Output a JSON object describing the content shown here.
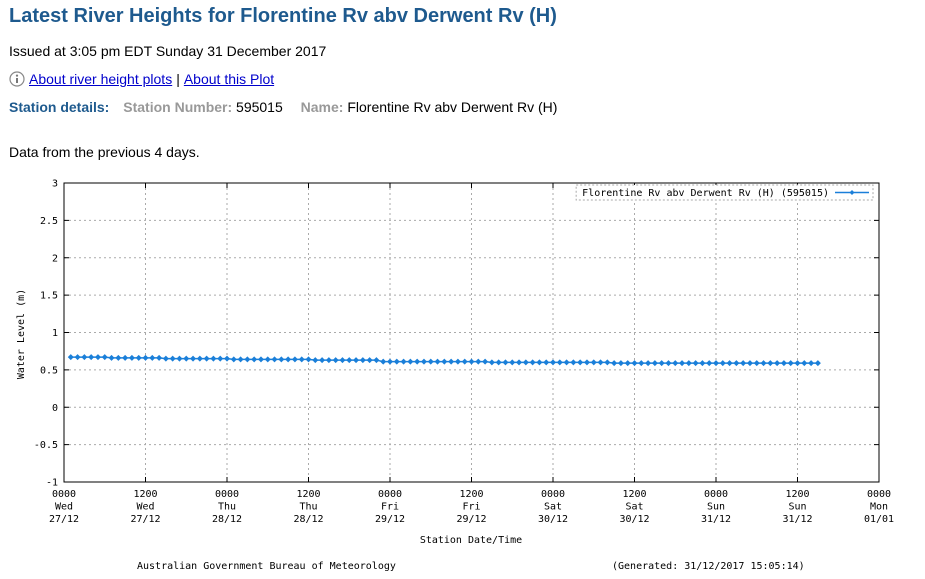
{
  "header": {
    "title": "Latest River Heights for Florentine Rv abv Derwent Rv (H)",
    "issued": "Issued at 3:05 pm EDT Sunday 31 December 2017",
    "links": [
      "About river height plots",
      "About this Plot"
    ],
    "separator": "|",
    "station_details": "Station details:",
    "station_number_label": "Station Number:",
    "station_number": "595015",
    "name_label": "Name:",
    "name": "Florentine Rv abv Derwent Rv (H)",
    "note": "Data from the previous 4 days."
  },
  "chart_data": {
    "type": "line",
    "ylabel": "Water Level (m)",
    "xlabel": "Station Date/Time",
    "footer_left": "Australian Government Bureau of Meteorology",
    "footer_right": "(Generated: 31/12/2017 15:05:14)",
    "ylim": [
      -1,
      3
    ],
    "yticks": [
      -1,
      -0.5,
      0,
      0.5,
      1,
      1.5,
      2,
      2.5,
      3
    ],
    "xlim": [
      0,
      120
    ],
    "xticks": [
      {
        "value": 0,
        "label": [
          "0000",
          "Wed",
          "27/12"
        ]
      },
      {
        "value": 12,
        "label": [
          "1200",
          "Wed",
          "27/12"
        ]
      },
      {
        "value": 24,
        "label": [
          "0000",
          "Thu",
          "28/12"
        ]
      },
      {
        "value": 36,
        "label": [
          "1200",
          "Thu",
          "28/12"
        ]
      },
      {
        "value": 48,
        "label": [
          "0000",
          "Fri",
          "29/12"
        ]
      },
      {
        "value": 60,
        "label": [
          "1200",
          "Fri",
          "29/12"
        ]
      },
      {
        "value": 72,
        "label": [
          "0000",
          "Sat",
          "30/12"
        ]
      },
      {
        "value": 84,
        "label": [
          "1200",
          "Sat",
          "30/12"
        ]
      },
      {
        "value": 96,
        "label": [
          "0000",
          "Sun",
          "31/12"
        ]
      },
      {
        "value": 108,
        "label": [
          "1200",
          "Sun",
          "31/12"
        ]
      },
      {
        "value": 120,
        "label": [
          "0000",
          "Mon",
          "01/01"
        ]
      }
    ],
    "grid": true,
    "legend": "upper right",
    "series": [
      {
        "name": "Florentine Rv abv Derwent Rv (H) (595015)",
        "color": "#1a7fd9",
        "x": [
          1,
          2,
          3,
          4,
          5,
          6,
          7,
          8,
          9,
          10,
          11,
          12,
          13,
          14,
          15,
          16,
          17,
          18,
          19,
          20,
          21,
          22,
          23,
          24,
          25,
          26,
          27,
          28,
          29,
          30,
          31,
          32,
          33,
          34,
          35,
          36,
          37,
          38,
          39,
          40,
          41,
          42,
          43,
          44,
          45,
          46,
          47,
          48,
          49,
          50,
          51,
          52,
          53,
          54,
          55,
          56,
          57,
          58,
          59,
          60,
          61,
          62,
          63,
          64,
          65,
          66,
          67,
          68,
          69,
          70,
          71,
          72,
          73,
          74,
          75,
          76,
          77,
          78,
          79,
          80,
          81,
          82,
          83,
          84,
          85,
          86,
          87,
          88,
          89,
          90,
          91,
          92,
          93,
          94,
          95,
          96,
          97,
          98,
          99,
          100,
          101,
          102,
          103,
          104,
          105,
          106,
          107,
          108,
          109,
          110,
          111
        ],
        "values": [
          0.67,
          0.67,
          0.67,
          0.67,
          0.67,
          0.67,
          0.66,
          0.66,
          0.66,
          0.66,
          0.66,
          0.66,
          0.66,
          0.66,
          0.65,
          0.65,
          0.65,
          0.65,
          0.65,
          0.65,
          0.65,
          0.65,
          0.65,
          0.65,
          0.64,
          0.64,
          0.64,
          0.64,
          0.64,
          0.64,
          0.64,
          0.64,
          0.64,
          0.64,
          0.64,
          0.64,
          0.63,
          0.63,
          0.63,
          0.63,
          0.63,
          0.63,
          0.63,
          0.63,
          0.63,
          0.63,
          0.61,
          0.61,
          0.61,
          0.61,
          0.61,
          0.61,
          0.61,
          0.61,
          0.61,
          0.61,
          0.61,
          0.61,
          0.61,
          0.61,
          0.61,
          0.61,
          0.6,
          0.6,
          0.6,
          0.6,
          0.6,
          0.6,
          0.6,
          0.6,
          0.6,
          0.6,
          0.6,
          0.6,
          0.6,
          0.6,
          0.6,
          0.6,
          0.6,
          0.6,
          0.59,
          0.59,
          0.59,
          0.59,
          0.59,
          0.59,
          0.59,
          0.59,
          0.59,
          0.59,
          0.59,
          0.59,
          0.59,
          0.59,
          0.59,
          0.59,
          0.59,
          0.59,
          0.59,
          0.59,
          0.59,
          0.59,
          0.59,
          0.59,
          0.59,
          0.59,
          0.59,
          0.59,
          0.59,
          0.59,
          0.59
        ]
      }
    ]
  }
}
